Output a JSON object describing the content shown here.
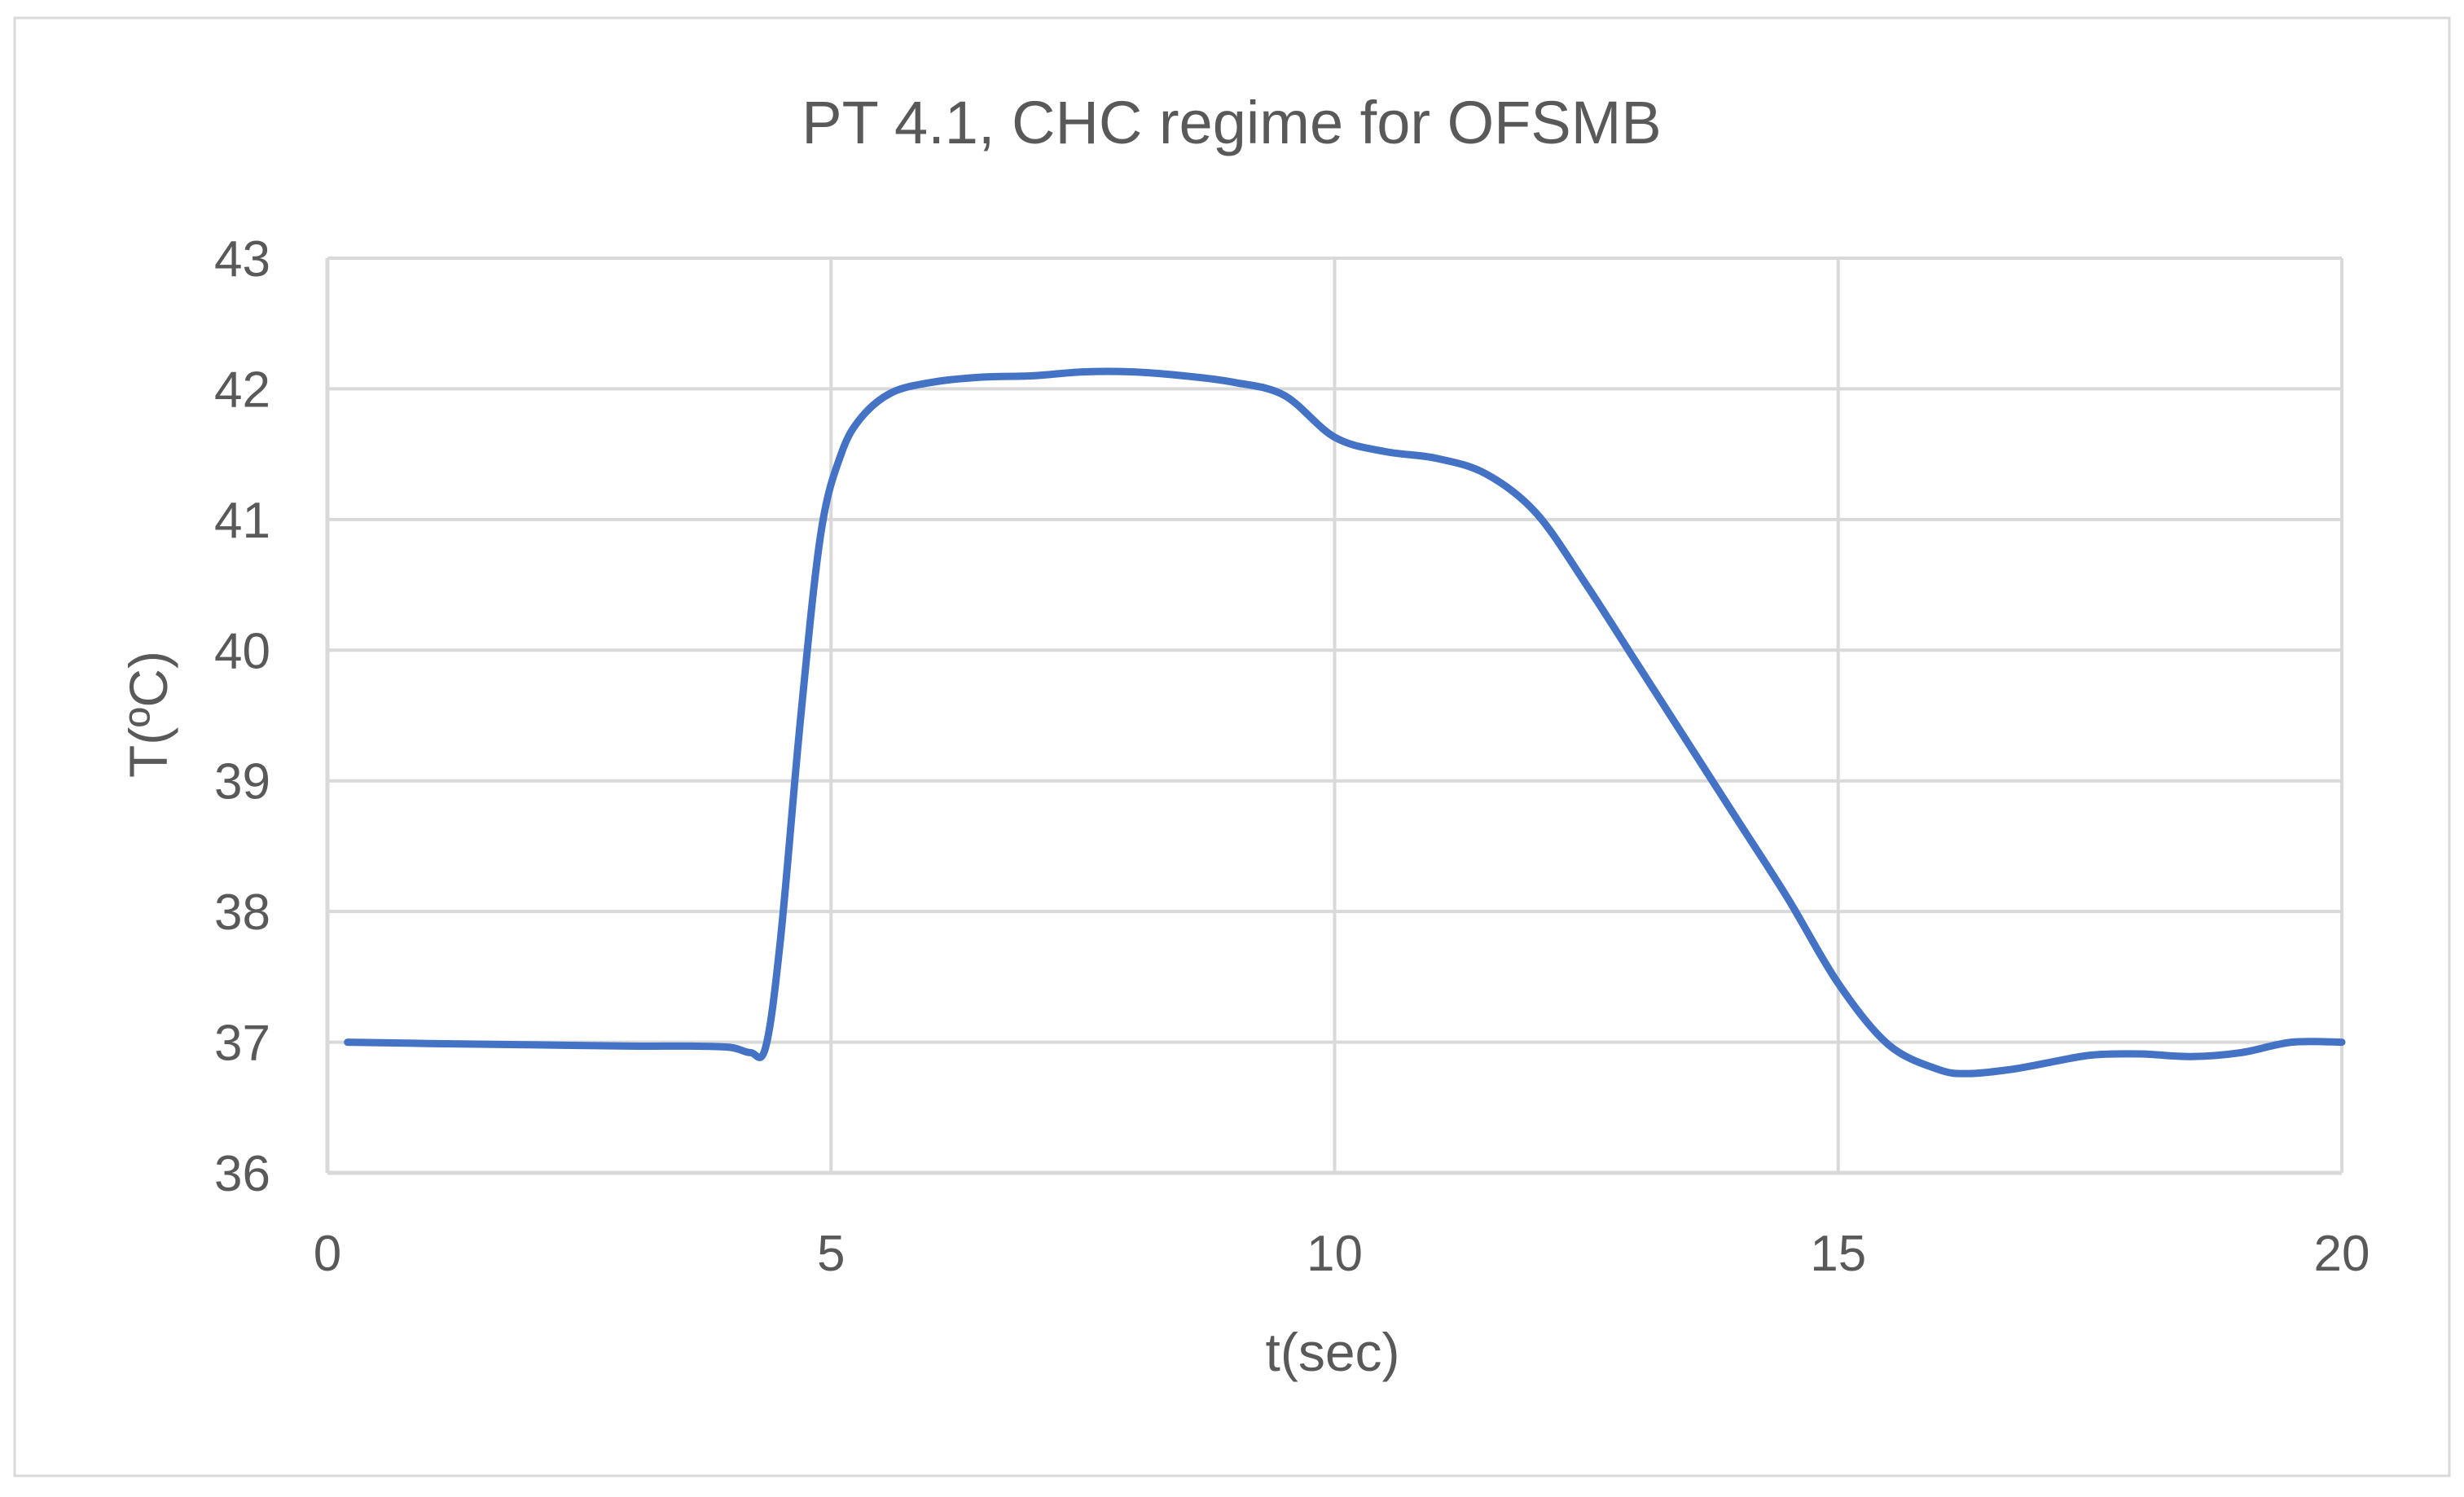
{
  "chart_data": {
    "type": "line",
    "title": "PT 4.1, CHC regime for OFSMB",
    "xlabel": "t(sec)",
    "ylabel": "T(ºC)",
    "xlim": [
      0,
      20
    ],
    "ylim": [
      36,
      43
    ],
    "x_ticks": [
      "0",
      "5",
      "10",
      "15",
      "20"
    ],
    "y_ticks": [
      "36",
      "37",
      "38",
      "39",
      "40",
      "41",
      "42",
      "43"
    ],
    "grid": true,
    "legend": "none",
    "line_color": "#4472C4",
    "series": [
      {
        "x": [
          0.2,
          1.0,
          2.0,
          3.0,
          3.6,
          4.0,
          4.2,
          4.35,
          4.5,
          4.7,
          4.9,
          5.1,
          5.3,
          5.6,
          6.0,
          6.5,
          7.0,
          7.5,
          8.0,
          8.5,
          9.0,
          9.5,
          10.0,
          10.5,
          11.0,
          11.5,
          12.0,
          12.5,
          13.0,
          13.5,
          14.0,
          14.5,
          15.0,
          15.5,
          16.0,
          16.3,
          16.7,
          17.0,
          17.5,
          18.0,
          18.5,
          19.0,
          19.5,
          20.0
        ],
        "y": [
          37.0,
          36.99,
          36.98,
          36.97,
          36.97,
          36.96,
          36.92,
          36.96,
          37.8,
          39.5,
          40.9,
          41.5,
          41.78,
          41.97,
          42.05,
          42.09,
          42.1,
          42.13,
          42.13,
          42.1,
          42.05,
          41.95,
          41.63,
          41.52,
          41.47,
          41.35,
          41.05,
          40.5,
          39.9,
          39.3,
          38.7,
          38.1,
          37.45,
          36.98,
          36.79,
          36.76,
          36.79,
          36.83,
          36.9,
          36.91,
          36.89,
          36.92,
          37.0,
          37.0
        ]
      }
    ]
  }
}
